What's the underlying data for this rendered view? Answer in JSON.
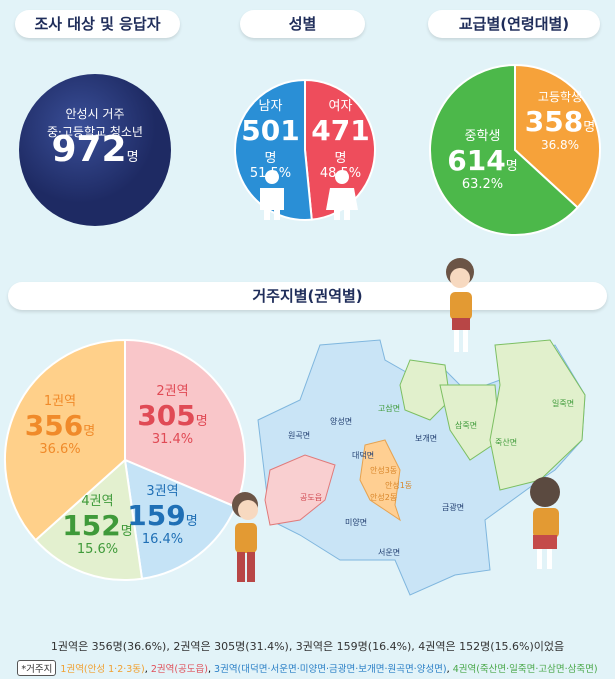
{
  "headers": {
    "respondents": "조사 대상 및 응답자",
    "gender": "성별",
    "school": "교급별(연령대별)",
    "region": "거주지별(권역별)"
  },
  "respondents": {
    "line1": "안성시 거주",
    "line2": "중·고등학교 청소년",
    "total": "972",
    "unit": "명"
  },
  "gender": {
    "male": {
      "label": "남자",
      "count": "501",
      "unit": "명",
      "pct": "51.5%"
    },
    "female": {
      "label": "여자",
      "count": "471",
      "unit": "명",
      "pct": "48.5%"
    }
  },
  "school": {
    "middle": {
      "label": "중학생",
      "count": "614",
      "unit": "명",
      "pct": "63.2%"
    },
    "high": {
      "label": "고등학생",
      "count": "358",
      "unit": "명",
      "pct": "36.8%"
    }
  },
  "region": {
    "r1": {
      "label": "1권역",
      "count": "356",
      "unit": "명",
      "pct": "36.6%"
    },
    "r2": {
      "label": "2권역",
      "count": "305",
      "unit": "명",
      "pct": "31.4%"
    },
    "r3": {
      "label": "3권역",
      "count": "159",
      "unit": "명",
      "pct": "16.4%"
    },
    "r4": {
      "label": "4권역",
      "count": "152",
      "unit": "명",
      "pct": "15.6%"
    }
  },
  "map_labels": {
    "wongok": "원곡면",
    "yangseong": "양성면",
    "gosam": "고삼면",
    "bogae": "보개면",
    "samjuk": "삼죽면",
    "iljuk": "일죽면",
    "juksan": "죽산면",
    "daedeok": "대덕면",
    "anseong3": "안성3동",
    "anseong1": "안성1동",
    "anseong2": "안성2동",
    "gongdo": "공도읍",
    "miyang": "미양면",
    "geumgwang": "금광면",
    "seoun": "서운면"
  },
  "footer": "1권역은 356명(36.6%), 2권역은 305명(31.4%), 3권역은 159명(16.4%), 4권역은 152명(15.6%)이었음",
  "legend": {
    "tag": "*거주지",
    "r1": "1권역(안성 1·2·3동)",
    "r2": "2권역(공도읍)",
    "r3": "3권역(대덕면·서운면·미양면·금광면·보개면·원곡면·양성면)",
    "r4": "4권역(죽산면·일죽면·고삼면·삼죽면)",
    "sep": ", "
  },
  "colors": {
    "navy": "#23336e",
    "male": "#2a8fd6",
    "female": "#ee4d5c",
    "middle": "#4cb84a",
    "high": "#f6a23a",
    "r1": "#ffd08a",
    "r2": "#f9c6c9",
    "r3": "#c5e3f6",
    "r4": "#e3f0cf"
  },
  "chart_data": [
    {
      "type": "pie",
      "categories": [
        "남자",
        "여자"
      ],
      "values": [
        501,
        471
      ],
      "percent": [
        51.5,
        48.5
      ]
    },
    {
      "type": "pie",
      "categories": [
        "중학생",
        "고등학생"
      ],
      "values": [
        614,
        358
      ],
      "percent": [
        63.2,
        36.8
      ]
    },
    {
      "type": "pie",
      "categories": [
        "1권역",
        "2권역",
        "3권역",
        "4권역"
      ],
      "values": [
        356,
        305,
        159,
        152
      ],
      "percent": [
        36.6,
        31.4,
        16.4,
        15.6
      ]
    }
  ]
}
